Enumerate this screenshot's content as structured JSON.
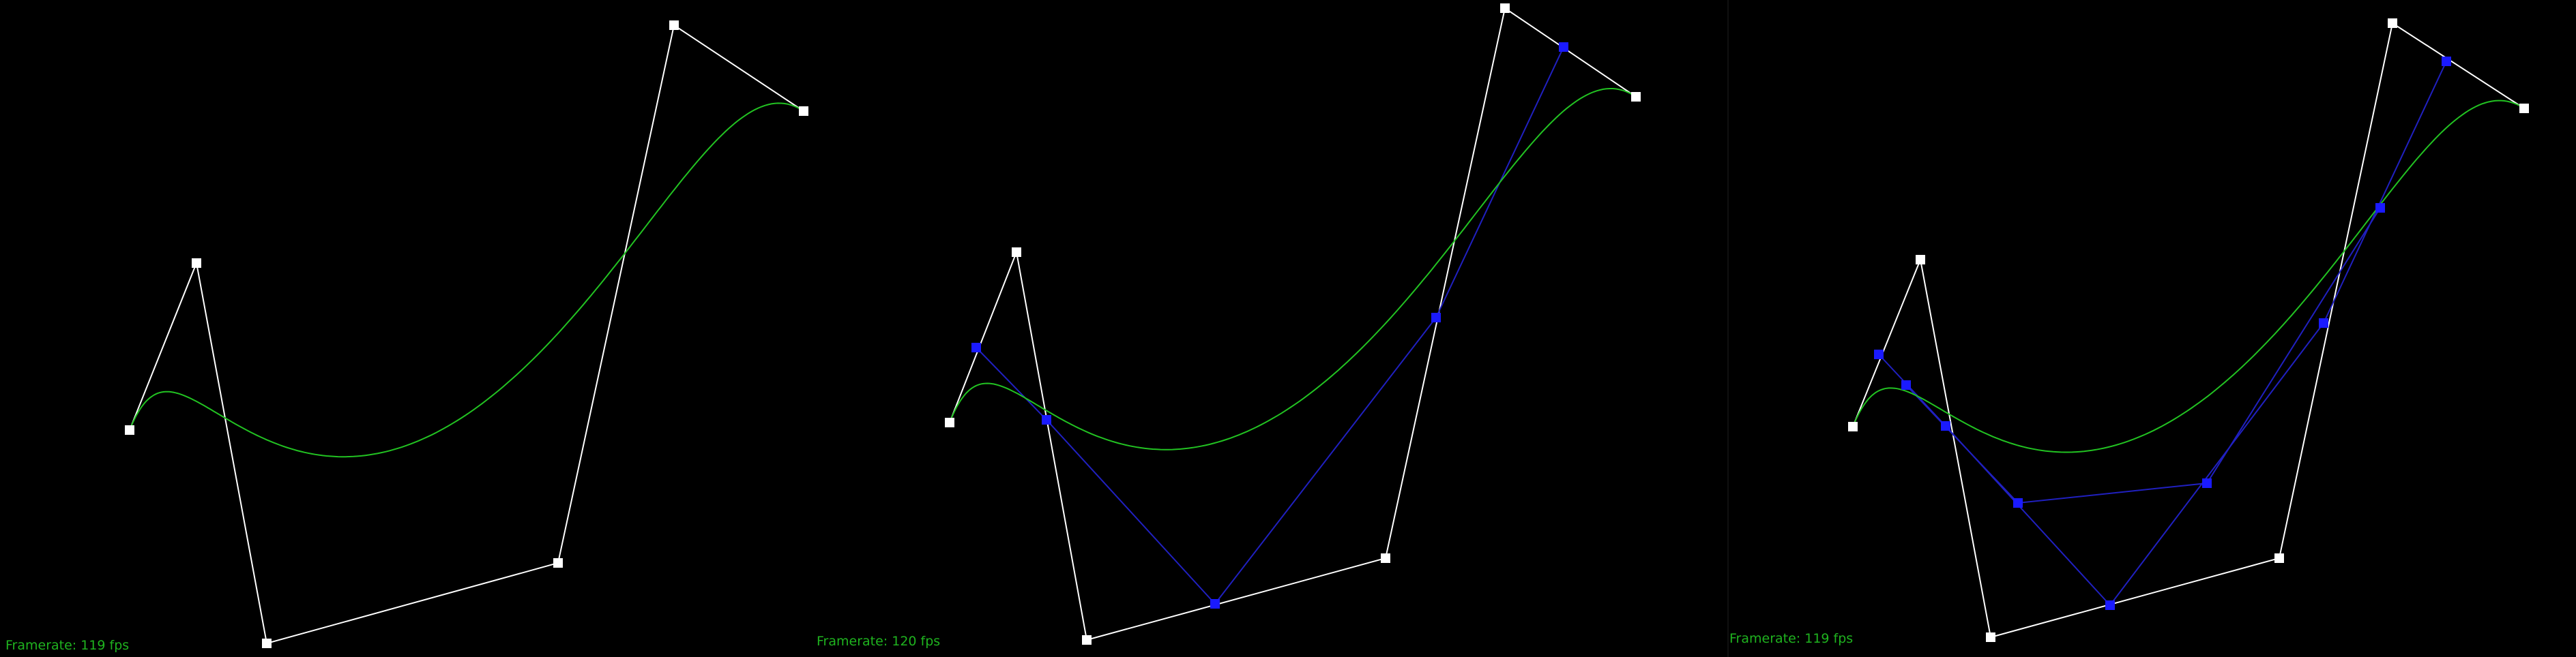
{
  "colors": {
    "background": "#000000",
    "control_polygon": "#ffffff",
    "curve": "#22c322",
    "construction": "#1a1aff",
    "construction_line": "#2020c0",
    "framerate_text": "#1fb31f"
  },
  "panels": [
    {
      "framerate_label": "Framerate: 119 fps",
      "control_points": [
        [
          190,
          631
        ],
        [
          288,
          386
        ],
        [
          391,
          944
        ],
        [
          818,
          826
        ],
        [
          988,
          37
        ],
        [
          1178,
          163
        ]
      ],
      "construction_levels": []
    },
    {
      "framerate_label": "Framerate: 120 fps",
      "control_points": [
        [
          187,
          620
        ],
        [
          285,
          370
        ],
        [
          388,
          939
        ],
        [
          826,
          819
        ],
        [
          1001,
          12
        ],
        [
          1193,
          142
        ]
      ],
      "construction_levels": [
        [
          [
            226,
            510
          ],
          [
            329,
            616
          ],
          [
            576,
            886
          ],
          [
            900,
            466
          ],
          [
            1087,
            69
          ]
        ]
      ]
    },
    {
      "framerate_label": "Framerate: 119 fps",
      "control_points": [
        [
          182,
          626
        ],
        [
          281,
          381
        ],
        [
          384,
          935
        ],
        [
          807,
          819
        ],
        [
          973,
          34
        ],
        [
          1166,
          159
        ]
      ],
      "construction_levels": [
        [
          [
            220,
            520
          ],
          [
            318,
            625
          ],
          [
            559,
            888
          ],
          [
            872,
            474
          ],
          [
            1052,
            90
          ]
        ],
        [
          [
            260,
            565
          ],
          [
            424,
            738
          ],
          [
            701,
            709
          ],
          [
            955,
            305
          ]
        ]
      ]
    }
  ]
}
